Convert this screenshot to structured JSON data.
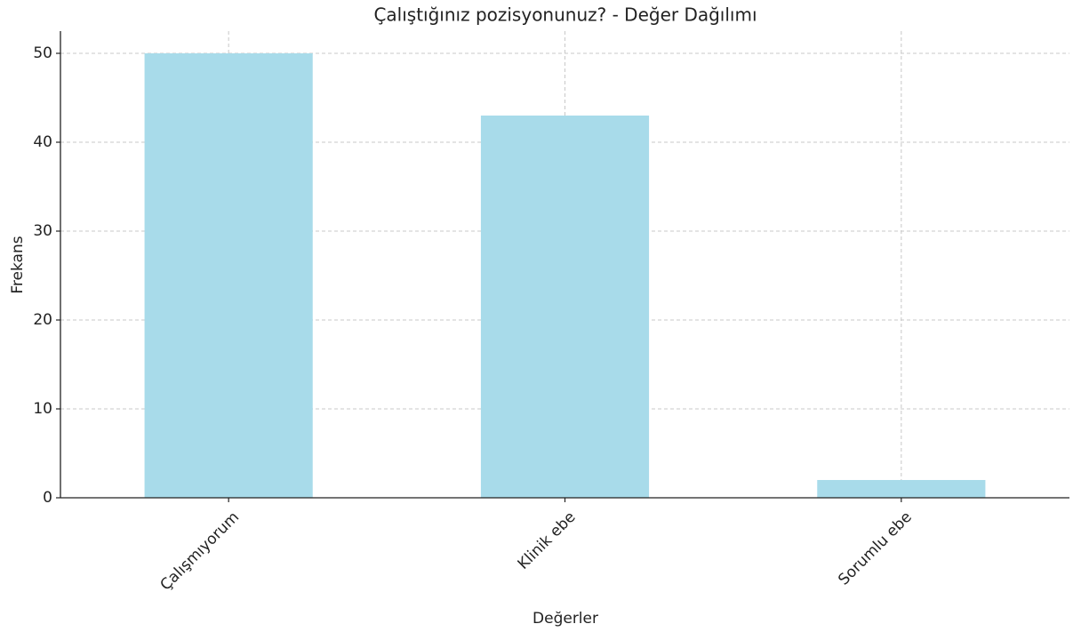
{
  "chart_data": {
    "type": "bar",
    "title": "Çalıştığınız pozisyonunuz? - Değer Dağılımı",
    "x_label": "Değerler",
    "y_label": "Frekans",
    "categories": [
      "Çalışmıyorum",
      "Klinik ebe",
      "Sorumlu ebe"
    ],
    "values": [
      50,
      43,
      2
    ],
    "color": "#a8dbea",
    "ylim": [
      0,
      52.5
    ],
    "yticks": [
      0,
      10,
      20,
      30,
      40,
      50
    ],
    "grid": true
  }
}
